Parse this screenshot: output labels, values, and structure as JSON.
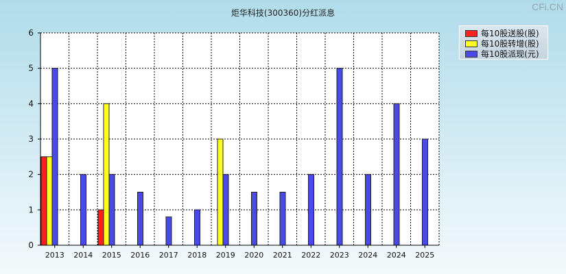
{
  "watermark": "CFi.CN",
  "chart_data": {
    "type": "bar",
    "title": "炬华科技(300360)分红派息",
    "xlabel": "",
    "ylabel": "",
    "ylim": [
      0,
      6
    ],
    "yticks": [
      0,
      1,
      2,
      3,
      4,
      5,
      6
    ],
    "grid": true,
    "legend_position": "top-right",
    "categories": [
      "2013",
      "2014",
      "2015",
      "2016",
      "2017",
      "2018",
      "2019",
      "2020",
      "2021",
      "2022",
      "2023",
      "2024",
      "2024",
      "2025"
    ],
    "series": [
      {
        "name": "每10股送股(股)",
        "color": "#ff2020",
        "values": [
          2.5,
          0,
          1,
          0,
          0,
          0,
          0,
          0,
          0,
          0,
          0,
          0,
          0,
          0
        ]
      },
      {
        "name": "每10股转增(股)",
        "color": "#ffff20",
        "values": [
          2.5,
          0,
          4,
          0,
          0,
          0,
          3,
          0,
          0,
          0,
          0,
          0,
          0,
          0
        ]
      },
      {
        "name": "每10股派现(元)",
        "color": "#4a4ae8",
        "values": [
          5,
          2,
          2,
          1.5,
          0.8,
          1,
          2,
          1.5,
          1.5,
          2,
          5,
          2,
          4,
          3
        ]
      }
    ]
  }
}
